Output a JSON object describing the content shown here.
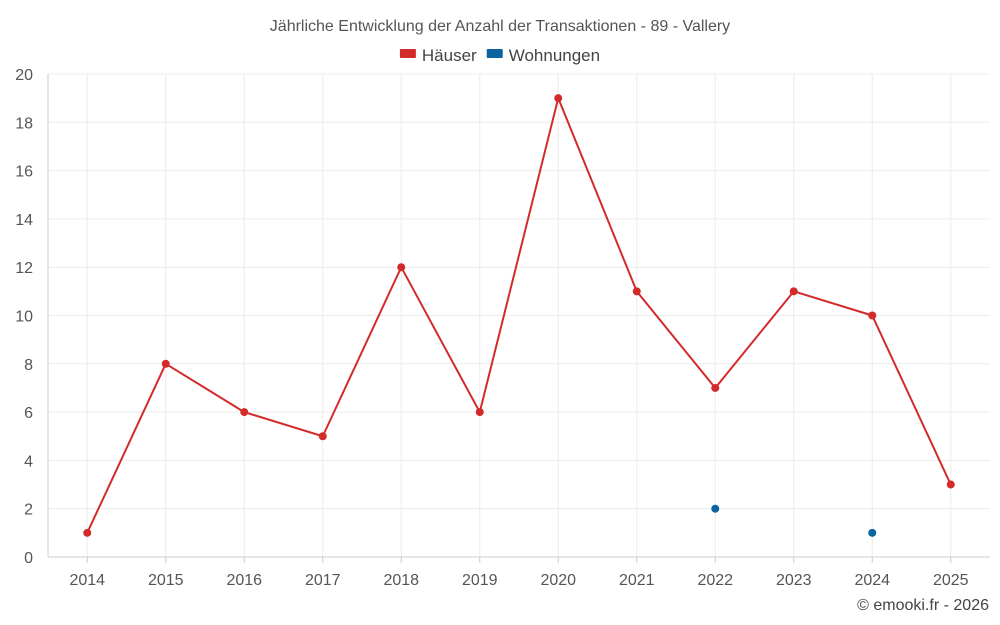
{
  "chart_data": {
    "type": "line",
    "title": "Jährliche Entwicklung der Anzahl der Transaktionen - 89 - Vallery",
    "categories": [
      "2014",
      "2015",
      "2016",
      "2017",
      "2018",
      "2019",
      "2020",
      "2021",
      "2022",
      "2023",
      "2024",
      "2025"
    ],
    "y_ticks": [
      0,
      2,
      4,
      6,
      8,
      10,
      12,
      14,
      16,
      18,
      20
    ],
    "ylim": [
      0,
      20
    ],
    "xlabel": "",
    "ylabel": "",
    "grid": true,
    "legend_position": "top-center",
    "series": [
      {
        "name": "Häuser",
        "color": "#d32a2a",
        "values": [
          1,
          8,
          6,
          5,
          12,
          6,
          19,
          11,
          7,
          11,
          10,
          3
        ]
      },
      {
        "name": "Wohnungen",
        "color": "#0b64a0",
        "values": [
          null,
          null,
          null,
          null,
          null,
          null,
          null,
          null,
          2,
          null,
          1,
          null
        ]
      }
    ]
  },
  "credit": "© emooki.fr - 2026"
}
